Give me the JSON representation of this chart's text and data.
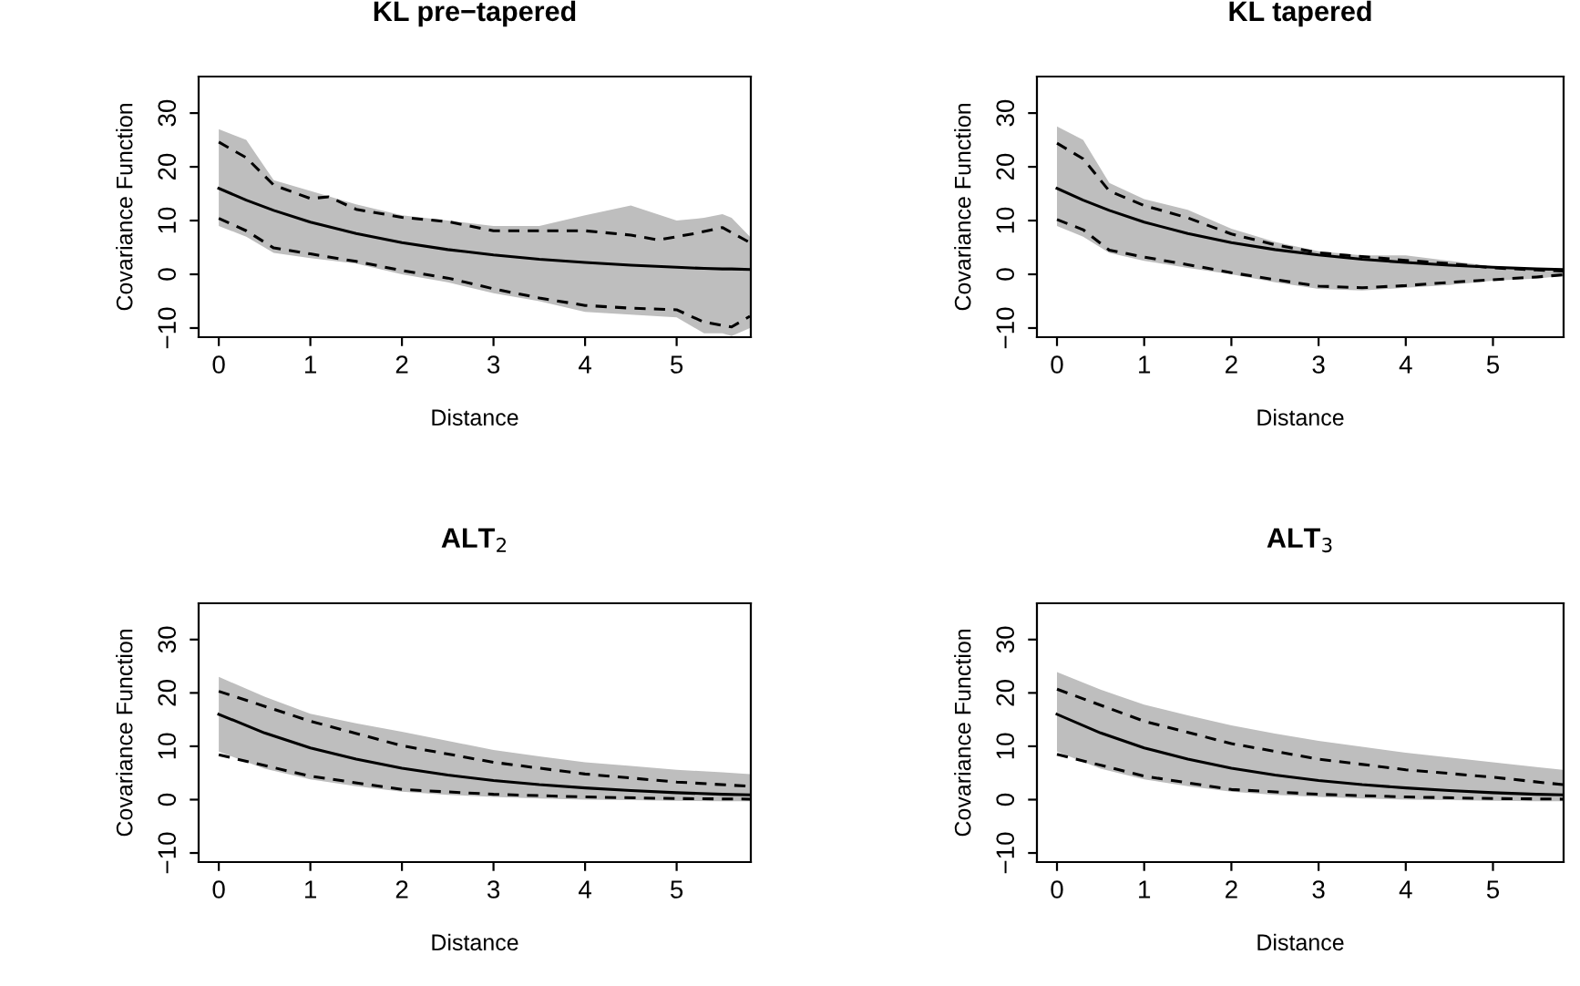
{
  "chart_data": [
    {
      "type": "line",
      "title": "KL pre−tapered",
      "xlabel": "Distance",
      "ylabel": "Covariance Function",
      "xlim": [
        -0.22,
        5.81
      ],
      "ylim": [
        -11.7,
        36.8
      ],
      "xticks": [
        0,
        1,
        2,
        3,
        4,
        5
      ],
      "yticks": [
        -10,
        0,
        10,
        20,
        30
      ],
      "series": [
        {
          "color": "#000000",
          "line_style": "solid",
          "x": [
            0,
            0.3,
            0.6,
            1,
            1.5,
            2,
            2.5,
            3,
            3.5,
            4,
            4.5,
            5,
            5.3,
            5.5,
            5.6,
            5.8
          ],
          "values": [
            16,
            13.8,
            11.9,
            9.7,
            7.6,
            5.9,
            4.6,
            3.6,
            2.8,
            2.2,
            1.7,
            1.3,
            1.1,
            1.0,
            1.0,
            0.9
          ],
          "lower": [
            9,
            7,
            4,
            3,
            2,
            0,
            -1.5,
            -3.5,
            -5,
            -7,
            -7.5,
            -8,
            -11,
            -11,
            -11.5,
            -10
          ],
          "upper": [
            27,
            25,
            17.5,
            15.5,
            13,
            11,
            10,
            9,
            9,
            11,
            12.8,
            10,
            10.5,
            11.2,
            10.5,
            7
          ]
        },
        {
          "color": "#000000",
          "line_style": "dashed",
          "x": [
            0,
            0.3,
            0.6,
            1,
            1.2,
            1.5,
            2,
            2.5,
            3,
            3.5,
            4,
            4.5,
            4.8,
            5.2,
            5.5,
            5.8
          ],
          "values": [
            24.6,
            21.7,
            16.6,
            14.1,
            14.4,
            12.1,
            10.6,
            9.8,
            8.1,
            8.1,
            8.1,
            7.3,
            6.4,
            7.6,
            8.7,
            5.9
          ]
        },
        {
          "color": "#000000",
          "line_style": "dashed",
          "x": [
            0,
            0.3,
            0.6,
            1,
            1.5,
            2,
            2.5,
            3,
            3.5,
            4,
            4.5,
            5,
            5.3,
            5.6,
            5.8
          ],
          "values": [
            10.4,
            8.1,
            4.9,
            3.8,
            2.4,
            0.7,
            -0.7,
            -2.7,
            -4.4,
            -5.8,
            -6.3,
            -6.6,
            -8.9,
            -9.8,
            -7.8
          ]
        }
      ]
    },
    {
      "type": "line",
      "title": "KL tapered",
      "xlabel": "Distance",
      "ylabel": "Covariance Function",
      "xlim": [
        -0.23,
        5.81
      ],
      "ylim": [
        -11.7,
        36.8
      ],
      "xticks": [
        0,
        1,
        2,
        3,
        4,
        5
      ],
      "yticks": [
        -10,
        0,
        10,
        20,
        30
      ],
      "series": [
        {
          "color": "#000000",
          "line_style": "solid",
          "x": [
            0,
            0.3,
            0.6,
            1,
            1.5,
            2,
            2.5,
            3,
            3.5,
            4,
            4.5,
            5,
            5.5,
            5.8
          ],
          "values": [
            16,
            13.8,
            11.9,
            9.7,
            7.6,
            5.9,
            4.6,
            3.6,
            2.8,
            2.2,
            1.7,
            1.3,
            1.0,
            0.9
          ],
          "lower": [
            9,
            7,
            4,
            2.5,
            1.2,
            0,
            -1.5,
            -2.7,
            -3,
            -2.5,
            -2,
            -1.2,
            -0.8,
            -0.3
          ],
          "upper": [
            27.5,
            25,
            17,
            14,
            12,
            8.5,
            6,
            4.3,
            3.5,
            3.5,
            2.5,
            1.5,
            1,
            0.8
          ]
        },
        {
          "color": "#000000",
          "line_style": "dashed",
          "x": [
            0,
            0.3,
            0.6,
            1,
            1.5,
            2,
            2.5,
            3,
            3.5,
            4,
            4.5,
            5,
            5.5,
            5.8
          ],
          "values": [
            24.4,
            21.5,
            15.5,
            12.8,
            10.5,
            7.5,
            5.5,
            4,
            3.3,
            2.6,
            2,
            1.2,
            0.8,
            0.6
          ]
        },
        {
          "color": "#000000",
          "line_style": "dashed",
          "x": [
            0,
            0.3,
            0.6,
            1,
            1.5,
            2,
            2.5,
            3,
            3.5,
            4,
            4.5,
            5,
            5.5,
            5.8
          ],
          "values": [
            10.2,
            8.3,
            4.5,
            3.2,
            1.8,
            0.3,
            -1,
            -2.2,
            -2.5,
            -2.1,
            -1.5,
            -1,
            -0.5,
            -0.1
          ]
        }
      ]
    },
    {
      "type": "line",
      "title": "ALT$_{2}$",
      "xlabel": "Distance",
      "ylabel": "Covariance Function",
      "xlim": [
        -0.22,
        5.81
      ],
      "ylim": [
        -11.7,
        36.8
      ],
      "xticks": [
        0,
        1,
        2,
        3,
        4,
        5
      ],
      "yticks": [
        -10,
        0,
        10,
        20,
        30
      ],
      "series": [
        {
          "color": "#000000",
          "line_style": "solid",
          "x": [
            0,
            0.5,
            1,
            1.5,
            2,
            2.5,
            3,
            3.5,
            4,
            4.5,
            5,
            5.5,
            5.8
          ],
          "values": [
            16,
            12.5,
            9.7,
            7.6,
            5.9,
            4.6,
            3.6,
            2.8,
            2.2,
            1.7,
            1.3,
            1.0,
            0.9
          ],
          "lower": [
            9,
            5.8,
            3.8,
            2.5,
            1.5,
            0.9,
            0.5,
            0.2,
            0,
            -0.1,
            -0.2,
            -0.3,
            -0.3
          ],
          "upper": [
            23,
            19.3,
            16.1,
            14.3,
            12.7,
            11,
            9.3,
            8.1,
            7.0,
            6.3,
            5.6,
            5.1,
            4.8
          ]
        },
        {
          "color": "#000000",
          "line_style": "dashed",
          "x": [
            0,
            1,
            2,
            3,
            4,
            5,
            5.8
          ],
          "values": [
            20.3,
            14.7,
            10.1,
            7,
            4.8,
            3.3,
            2.5
          ]
        },
        {
          "color": "#000000",
          "line_style": "dashed",
          "x": [
            0,
            1,
            2,
            3,
            4,
            5,
            5.8
          ],
          "values": [
            8.4,
            4.4,
            1.9,
            1,
            0.5,
            0.2,
            0.1
          ]
        }
      ]
    },
    {
      "type": "line",
      "title": "ALT$_{3}$",
      "xlabel": "Distance",
      "ylabel": "Covariance Function",
      "xlim": [
        -0.23,
        5.81
      ],
      "ylim": [
        -11.7,
        36.8
      ],
      "xticks": [
        0,
        1,
        2,
        3,
        4,
        5
      ],
      "yticks": [
        -10,
        0,
        10,
        20,
        30
      ],
      "series": [
        {
          "color": "#000000",
          "line_style": "solid",
          "x": [
            0,
            0.5,
            1,
            1.5,
            2,
            2.5,
            3,
            3.5,
            4,
            4.5,
            5,
            5.5,
            5.8
          ],
          "values": [
            16,
            12.5,
            9.7,
            7.6,
            5.9,
            4.6,
            3.6,
            2.8,
            2.2,
            1.7,
            1.3,
            1.0,
            0.9
          ],
          "lower": [
            9,
            5.8,
            3.8,
            2.5,
            1.5,
            0.9,
            0.5,
            0.2,
            0,
            -0.1,
            -0.2,
            -0.3,
            -0.3
          ],
          "upper": [
            23.9,
            20.6,
            17.8,
            15.8,
            13.9,
            12.4,
            11,
            9.9,
            8.8,
            7.9,
            7,
            6.1,
            5.6
          ]
        },
        {
          "color": "#000000",
          "line_style": "dashed",
          "x": [
            0,
            1,
            2,
            3,
            4,
            5,
            5.8
          ],
          "values": [
            20.7,
            14.7,
            10.5,
            7.6,
            5.6,
            4.2,
            2.8
          ]
        },
        {
          "color": "#000000",
          "line_style": "dashed",
          "x": [
            0,
            1,
            2,
            3,
            4,
            5,
            5.8
          ],
          "values": [
            8.5,
            4.4,
            1.9,
            1,
            0.5,
            0.2,
            0.1
          ]
        }
      ]
    }
  ]
}
